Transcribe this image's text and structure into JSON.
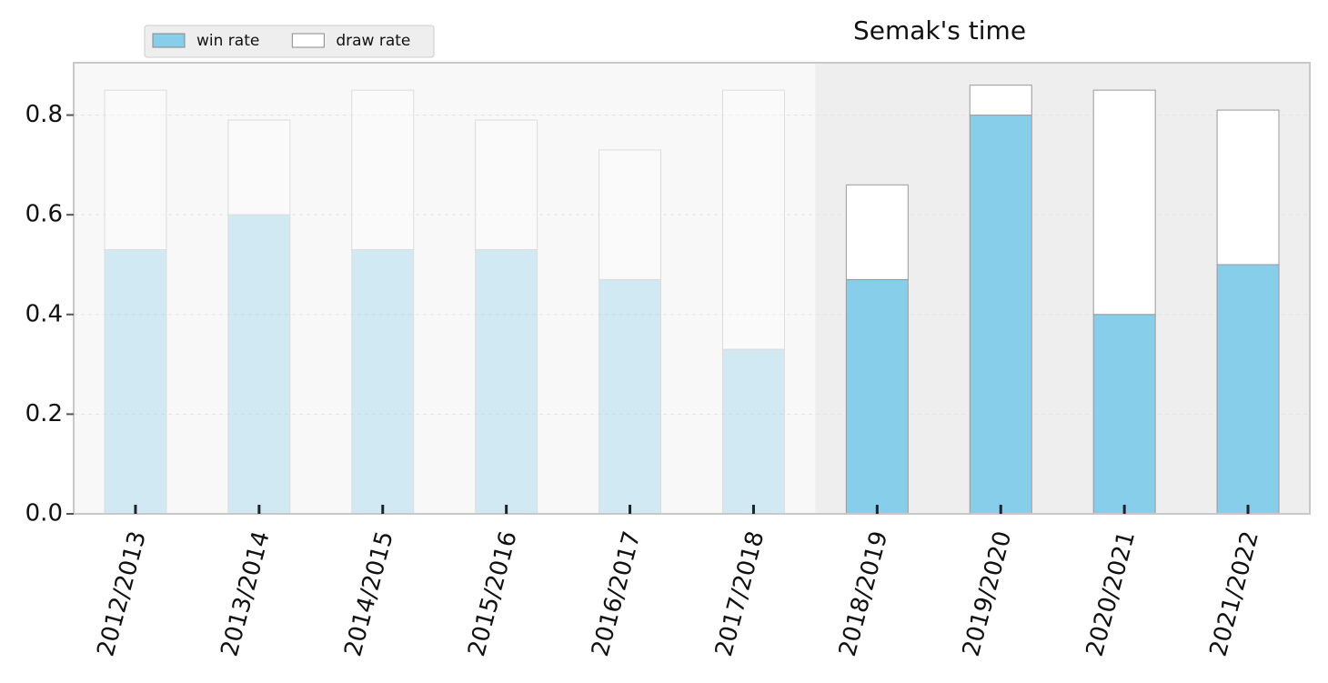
{
  "chart_data": {
    "type": "stacked_bar",
    "annotation": "Semak's time",
    "highlight_from": "2018/2019",
    "categories": [
      "2012/2013",
      "2013/2014",
      "2014/2015",
      "2015/2016",
      "2016/2017",
      "2017/2018",
      "2018/2019",
      "2019/2020",
      "2020/2021",
      "2021/2022"
    ],
    "series": [
      {
        "name": "win rate",
        "color": "#87ceeb",
        "values": [
          0.53,
          0.6,
          0.53,
          0.53,
          0.47,
          0.33,
          0.47,
          0.8,
          0.4,
          0.5
        ]
      },
      {
        "name": "draw rate",
        "color": "#ffffff",
        "values": [
          0.32,
          0.19,
          0.32,
          0.26,
          0.26,
          0.52,
          0.19,
          0.06,
          0.45,
          0.31
        ]
      }
    ],
    "ylim": [
      0,
      0.905
    ],
    "yticks": [
      0.0,
      0.2,
      0.4,
      0.6,
      0.8
    ],
    "grid": true,
    "legend": "upper left"
  }
}
